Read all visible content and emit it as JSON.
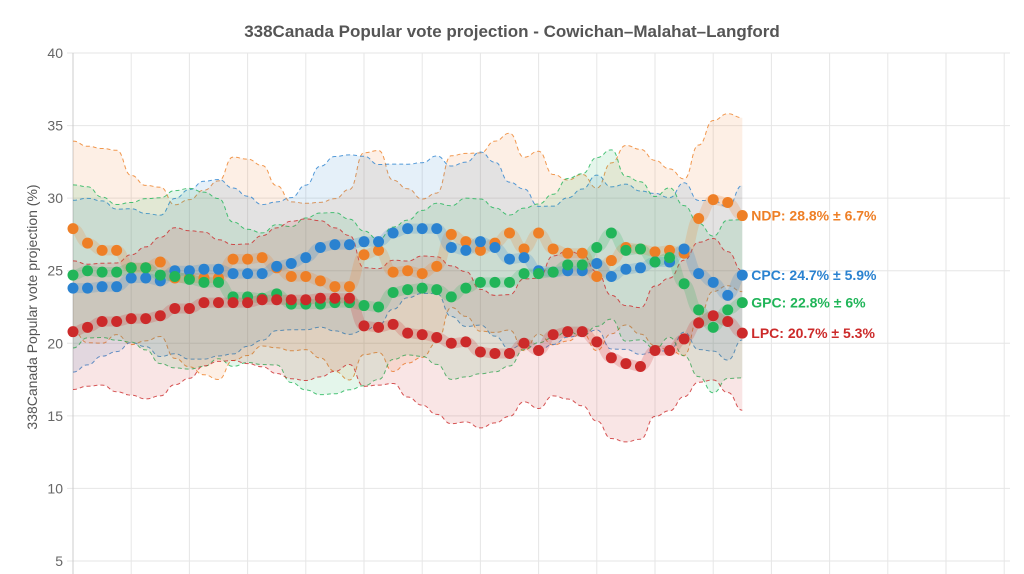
{
  "chart_data": {
    "type": "line",
    "title": "338Canada Popular vote projection - Cowichan–Malahat–Langford",
    "ylabel": "338Canada Popular vote projection (%)",
    "xlabel": "",
    "ylim": [
      5,
      40
    ],
    "yticks": [
      5,
      10,
      15,
      20,
      25,
      30,
      35,
      40
    ],
    "grid": true,
    "legend": "end-of-line labels",
    "series": [
      {
        "name": "NDP",
        "label": "NDP: 28.8% ± 6.7%",
        "color": "#ee7f26",
        "margin": 6.7,
        "values": [
          27.9,
          26.9,
          26.4,
          26.4,
          25.2,
          25.2,
          25.6,
          24.5,
          24.5,
          24.5,
          24.5,
          25.8,
          25.8,
          25.9,
          25.2,
          24.6,
          24.6,
          24.3,
          23.9,
          23.9,
          26.1,
          26.4,
          24.9,
          25.0,
          24.8,
          25.3,
          27.5,
          27.0,
          26.4,
          26.9,
          27.6,
          26.5,
          27.6,
          26.5,
          26.2,
          26.2,
          24.6,
          25.7,
          26.6,
          26.5,
          26.3,
          26.4,
          26.2,
          28.6,
          29.9,
          29.7,
          28.8
        ]
      },
      {
        "name": "CPC",
        "label": "CPC: 24.7% ± 5.9%",
        "color": "#2a82d0",
        "margin": 5.9,
        "values": [
          23.8,
          23.8,
          23.9,
          23.9,
          24.5,
          24.5,
          24.3,
          25.0,
          25.0,
          25.1,
          25.1,
          24.8,
          24.8,
          24.8,
          25.3,
          25.5,
          25.9,
          26.6,
          26.8,
          26.8,
          27.0,
          27.0,
          27.6,
          27.9,
          27.9,
          27.9,
          26.6,
          26.4,
          27.0,
          26.6,
          25.8,
          25.9,
          25.0,
          24.9,
          25.0,
          25.0,
          25.5,
          24.6,
          25.1,
          25.2,
          25.6,
          25.6,
          26.5,
          24.8,
          24.2,
          23.3,
          24.7
        ]
      },
      {
        "name": "GPC",
        "label": "GPC: 22.8% ± 6%",
        "color": "#21b559",
        "margin": 6,
        "values": [
          24.7,
          25.0,
          24.9,
          24.9,
          25.2,
          25.2,
          24.7,
          24.6,
          24.4,
          24.2,
          24.2,
          23.2,
          23.2,
          23.1,
          23.4,
          22.7,
          22.7,
          22.7,
          22.8,
          22.8,
          22.6,
          22.5,
          23.5,
          23.7,
          23.8,
          23.7,
          23.2,
          23.8,
          24.2,
          24.2,
          24.2,
          24.8,
          24.8,
          24.9,
          25.4,
          25.4,
          26.6,
          27.6,
          26.4,
          26.5,
          25.6,
          25.9,
          24.1,
          22.3,
          21.1,
          22.3,
          22.8
        ]
      },
      {
        "name": "LPC",
        "label": "LPC: 20.7% ± 5.3%",
        "color": "#cc2a2a",
        "margin": 5.3,
        "values": [
          20.8,
          21.1,
          21.5,
          21.5,
          21.7,
          21.7,
          21.9,
          22.4,
          22.4,
          22.8,
          22.8,
          22.8,
          22.8,
          23.0,
          23.0,
          23.0,
          23.0,
          23.1,
          23.1,
          23.1,
          21.2,
          21.1,
          21.3,
          20.7,
          20.6,
          20.4,
          20.0,
          20.1,
          19.4,
          19.3,
          19.3,
          20.0,
          19.5,
          20.6,
          20.8,
          20.8,
          20.1,
          19.0,
          18.6,
          18.4,
          19.5,
          19.5,
          20.3,
          21.4,
          21.9,
          21.5,
          20.7
        ]
      }
    ]
  }
}
